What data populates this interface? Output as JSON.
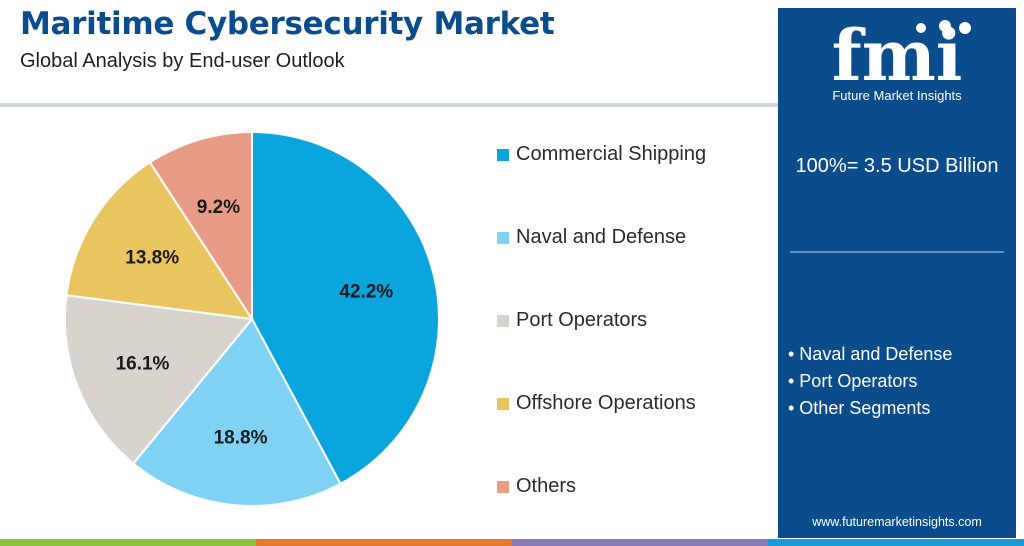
{
  "header": {
    "title": "Maritime Cybersecurity Market",
    "subtitle": "Global Analysis by End-user Outlook"
  },
  "chart_data": {
    "type": "pie",
    "categories": [
      "Commercial Shipping",
      "Naval and Defense",
      "Port Operators",
      "Offshore Operations",
      "Others"
    ],
    "values": [
      42.2,
      18.8,
      16.1,
      13.8,
      9.2
    ],
    "labels": [
      "42.2%",
      "18.8%",
      "16.1%",
      "13.8%",
      "9.2%"
    ],
    "colors": [
      "#0aa5dd",
      "#7fd2f3",
      "#d9d3ce",
      "#e9c45f",
      "#e89c85"
    ],
    "legend_position": "right"
  },
  "sidebar": {
    "logo_text": "fmi",
    "logo_subtitle": "Future Market Insights",
    "total_label": "100%= 3.5 USD Billion",
    "segments": [
      "• Naval and Defense",
      "• Port Operators",
      "• Other Segments"
    ],
    "url": "www.futuremarketinsights.com",
    "background_color": "#0b4d8c"
  },
  "bottom_bar_colors": [
    "#8cc43f",
    "#e57a2f",
    "#8a7ab8",
    "#1a9ad6"
  ]
}
